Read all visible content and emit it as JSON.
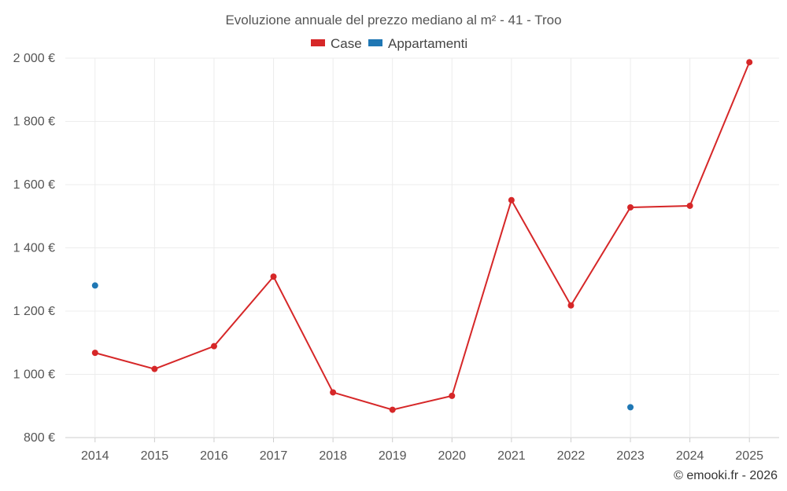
{
  "chart_data": {
    "type": "line",
    "title": "Evoluzione annuale del prezzo mediano al m² - 41 - Troo",
    "x": [
      "2014",
      "2015",
      "2016",
      "2017",
      "2018",
      "2019",
      "2020",
      "2021",
      "2022",
      "2023",
      "2024",
      "2025"
    ],
    "y_ticks": [
      800,
      1000,
      1200,
      1400,
      1600,
      1800,
      2000
    ],
    "y_tick_labels": [
      "800 €",
      "1 000 €",
      "1 200 €",
      "1 400 €",
      "1 600 €",
      "1 800 €",
      "2 000 €"
    ],
    "ylim": [
      800,
      2000
    ],
    "grid": true,
    "legend_position": "top-center",
    "series": [
      {
        "name": "Case",
        "color": "#d62728",
        "values": [
          1068,
          1017,
          1089,
          1309,
          943,
          888,
          932,
          1551,
          1218,
          1528,
          1533,
          1987
        ]
      },
      {
        "name": "Appartamenti",
        "color": "#1f77b4",
        "values": [
          1281,
          null,
          null,
          null,
          null,
          null,
          null,
          null,
          null,
          896,
          null,
          null
        ]
      }
    ],
    "credit": "© emooki.fr - 2026"
  }
}
